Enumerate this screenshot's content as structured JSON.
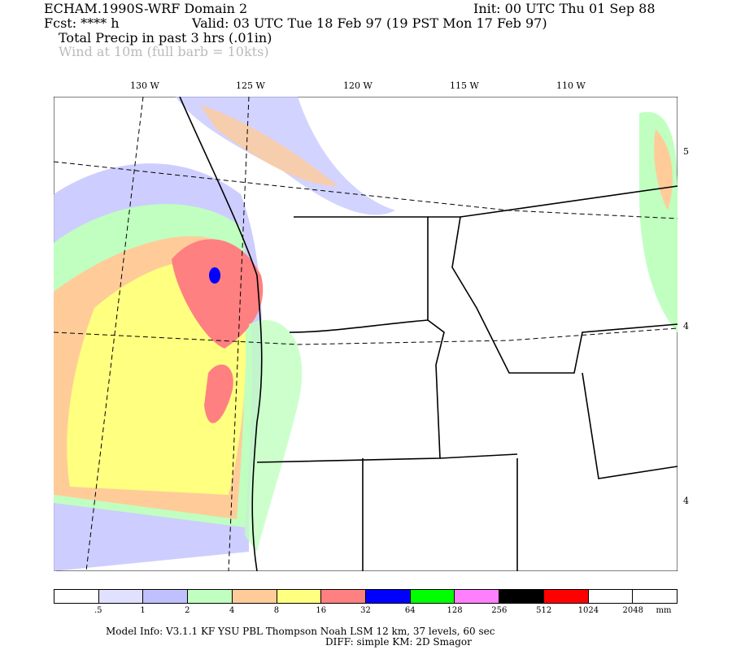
{
  "header": {
    "title": "ECHAM.1990S-WRF Domain 2",
    "init": "Init: 00 UTC Thu 01 Sep 88",
    "fcst": "Fcst: **** h",
    "valid": "Valid: 03 UTC Tue 18 Feb 97 (19 PST Mon 17 Feb 97)",
    "field1": "Total Precip in past 3 hrs (.01in)",
    "field2": "Wind at 10m (full barb = 10kts)"
  },
  "lon_labels": [
    "130 W",
    "125 W",
    "120 W",
    "115 W",
    "110 W"
  ],
  "lat_labels": [
    "5",
    "4",
    "4"
  ],
  "colorbar": {
    "colors": [
      "#ffffff",
      "#e0e0ff",
      "#c0c0ff",
      "#c0ffc0",
      "#ffcc99",
      "#ffff80",
      "#ff8080",
      "#0000ff",
      "#00ff00",
      "#ff80ff",
      "#000000",
      "#ff0000",
      "#ffffff",
      "#ffffff"
    ],
    "labels": [
      ".5",
      "1",
      "2",
      "4",
      "8",
      "16",
      "32",
      "64",
      "128",
      "256",
      "512",
      "1024",
      "2048"
    ],
    "unit": "mm"
  },
  "footer": {
    "line1": "Model Info: V3.1.1    KF      YSU PBL   Thompson     Noah LSM   12 km,     37 levels,     60 sec",
    "line2": "DIFF: simple KM: 2D Smagor"
  }
}
